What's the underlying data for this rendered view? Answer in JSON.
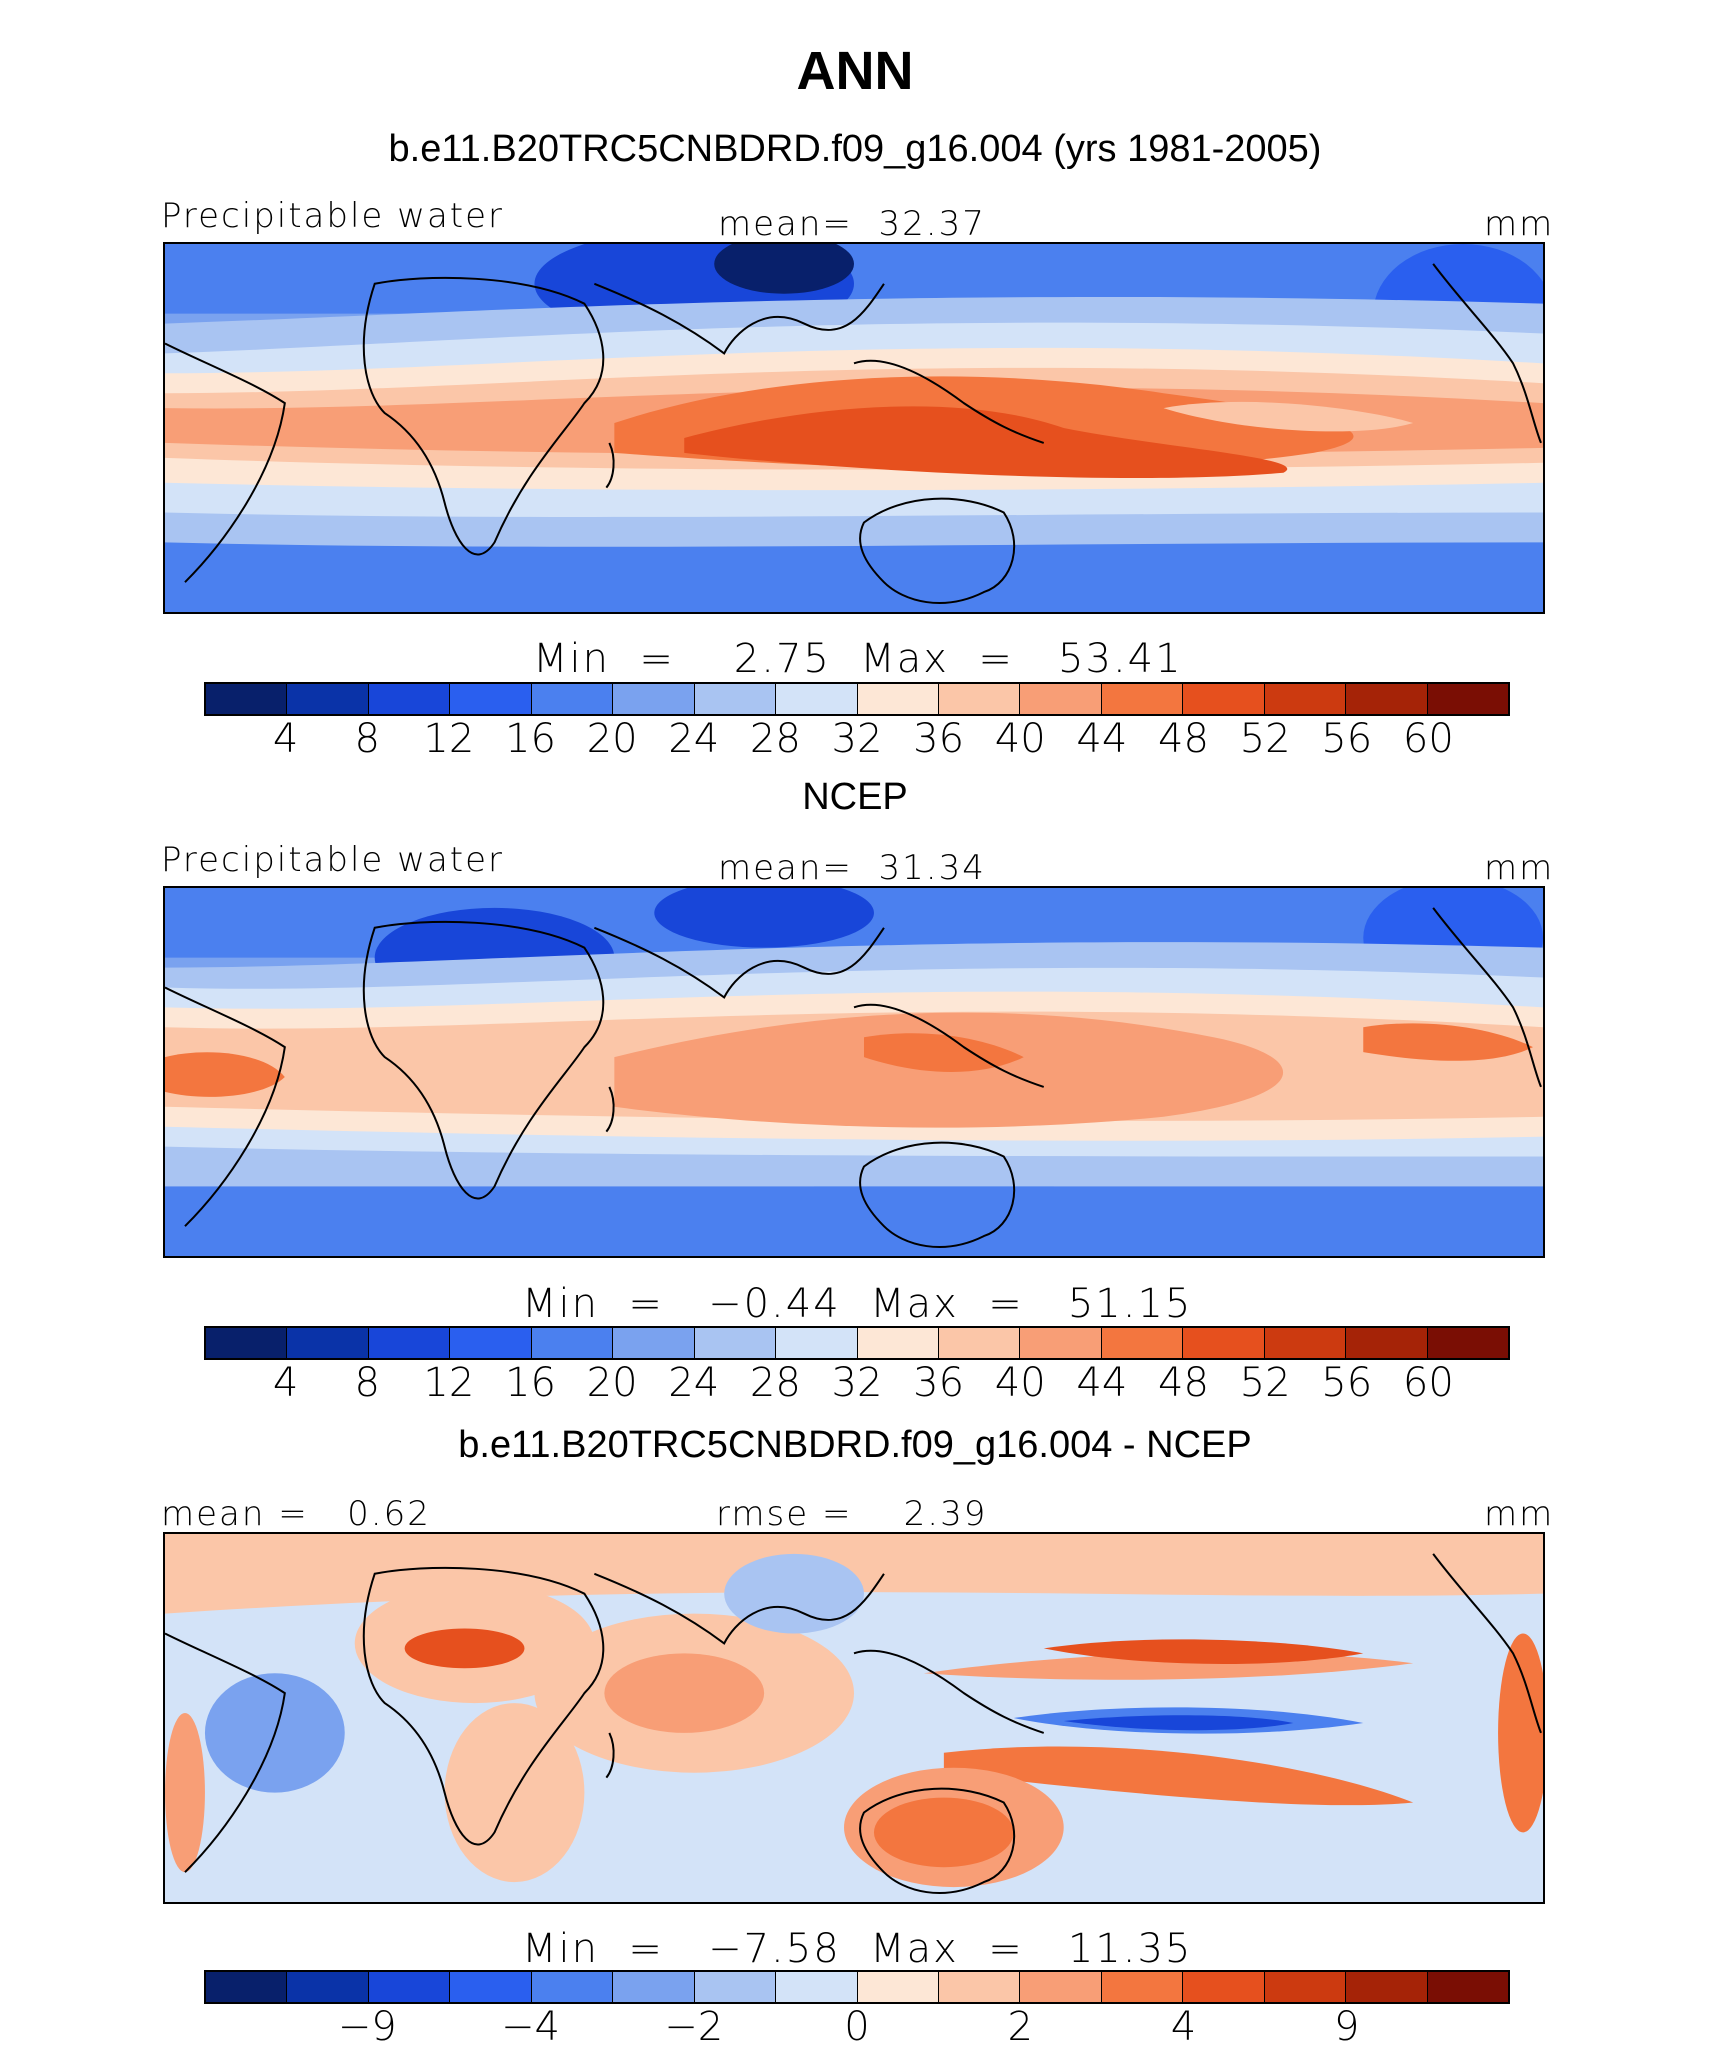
{
  "title": "ANN",
  "colormap": [
    "#08206b",
    "#0a33a8",
    "#1846d9",
    "#2a5fef",
    "#4b80ef",
    "#7aa2ef",
    "#a9c4f2",
    "#d3e3f8",
    "#fde7d6",
    "#fbc6a8",
    "#f89e76",
    "#f3763f",
    "#e6501e",
    "#cc3a10",
    "#a52307",
    "#7a0e04"
  ],
  "panels": [
    {
      "subtitle": "b.e11.B20TRC5CNBDRD.f09_g16.004 (yrs 1981-2005)",
      "left_label": "Precipitable water",
      "center_label": "mean=  32.37",
      "right_label": "mm",
      "stats": "Min  =    2.75  Max  =   53.41",
      "cbar_ticks": [
        "4",
        "8",
        "12",
        "16",
        "20",
        "24",
        "28",
        "32",
        "36",
        "40",
        "44",
        "48",
        "52",
        "56",
        "60"
      ],
      "map_icon": "precipitable-water-model-map"
    },
    {
      "subtitle": "NCEP",
      "left_label": "Precipitable water",
      "center_label": "mean=  31.34",
      "right_label": "mm",
      "stats": "Min  =   −0.44  Max  =   51.15",
      "cbar_ticks": [
        "4",
        "8",
        "12",
        "16",
        "20",
        "24",
        "28",
        "32",
        "36",
        "40",
        "44",
        "48",
        "52",
        "56",
        "60"
      ],
      "map_icon": "precipitable-water-ncep-map"
    },
    {
      "subtitle": "b.e11.B20TRC5CNBDRD.f09_g16.004 - NCEP",
      "left_label": "mean =   0.62",
      "center_label": "rmse =    2.39",
      "right_label": "mm",
      "stats": "Min  =   −7.58  Max  =   11.35",
      "cbar_ticks": [
        "−9",
        "−4",
        "−2",
        "0",
        "2",
        "4",
        "9"
      ],
      "map_icon": "precipitable-water-difference-map"
    }
  ]
}
